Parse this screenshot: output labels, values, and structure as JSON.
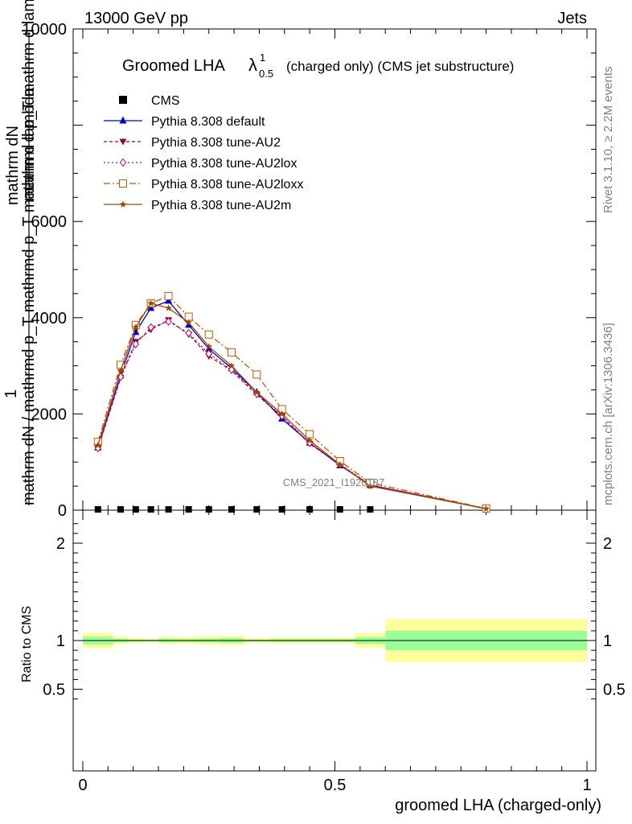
{
  "header": {
    "left": "13000 GeV pp",
    "right": "Jets"
  },
  "title": {
    "main": "Groomed LHA",
    "lambda_symbol": "λ",
    "lambda_sup": "1",
    "lambda_sub": "0.5",
    "rest": "(charged only) (CMS jet substructure)"
  },
  "side_labels": {
    "rivet": "Rivet 3.1.10, ≥ 2.2M events",
    "mcplots": "mcplots.cern.ch [arXiv:1306.3436]"
  },
  "watermark": "CMS_2021_I1920187",
  "ylabel_main": {
    "line1_num": "mathrm dN",
    "line1_den": "mathrm d p_T mathrm d lambda",
    "frac_one": "1",
    "line2": "mathrm dN / mathrmd p_T mathrmd p_T mathrm d lambda",
    "full_text": "1 over mathrm dN / mathrmd p_T mathrmd p_T  times  mathrm dN over mathrm d p_T mathrm d lambda"
  },
  "ylabel_ratio": "Ratio to CMS",
  "xlabel": "groomed LHA (charged-only)",
  "legend": [
    {
      "label": "CMS",
      "color": "#000000",
      "marker": "square-filled",
      "dash": ""
    },
    {
      "label": "Pythia 8.308 default",
      "color": "#0000cc",
      "marker": "triangle-up",
      "dash": ""
    },
    {
      "label": "Pythia 8.308 tune-AU2",
      "color": "#990033",
      "marker": "triangle-down",
      "dash": "4,3"
    },
    {
      "label": "Pythia 8.308 tune-AU2lox",
      "color": "#cc0066",
      "marker": "diamond-open",
      "dash": "2,3"
    },
    {
      "label": "Pythia 8.308 tune-AU2loxx",
      "color": "#cc5500",
      "marker": "square-open",
      "dash": "8,3,2,3"
    },
    {
      "label": "Pythia 8.308 tune-AU2m",
      "color": "#994c00",
      "marker": "star",
      "dash": ""
    }
  ],
  "chart_data": {
    "type": "line",
    "xlabel": "groomed LHA (charged-only)",
    "xlim": [
      0,
      1
    ],
    "ylim_main": [
      0,
      10000
    ],
    "ylim_ratio": [
      0.3,
      2.3
    ],
    "x_ticks": [
      "0",
      "0.5",
      "1"
    ],
    "y_ticks_main": [
      "0",
      "2000",
      "4000",
      "6000",
      "10000"
    ],
    "y_ticks_ratio": [
      "0.5",
      "1",
      "2"
    ],
    "x": [
      0.03,
      0.075,
      0.105,
      0.135,
      0.17,
      0.21,
      0.25,
      0.295,
      0.345,
      0.395,
      0.45,
      0.51,
      0.57,
      0.8
    ],
    "series": [
      {
        "name": "CMS",
        "values": [
          0,
          0,
          0,
          0,
          0,
          0,
          0,
          0,
          0,
          0,
          0,
          0,
          0,
          null
        ]
      },
      {
        "name": "Pythia 8.308 default",
        "values": [
          1300,
          2800,
          3700,
          4200,
          4350,
          3850,
          3350,
          2950,
          2450,
          1900,
          1400,
          930,
          520,
          30
        ]
      },
      {
        "name": "Pythia 8.308 tune-AU2",
        "values": [
          1280,
          2750,
          3500,
          3750,
          3950,
          3650,
          3200,
          2900,
          2400,
          1950,
          1380,
          950,
          520,
          30
        ]
      },
      {
        "name": "Pythia 8.308 tune-AU2lox",
        "values": [
          1290,
          2770,
          3450,
          3800,
          3920,
          3680,
          3250,
          2920,
          2420,
          1960,
          1400,
          960,
          530,
          30
        ]
      },
      {
        "name": "Pythia 8.308 tune-AU2loxx",
        "values": [
          1420,
          3020,
          3850,
          4300,
          4450,
          4020,
          3650,
          3280,
          2820,
          2100,
          1580,
          1020,
          570,
          35
        ]
      },
      {
        "name": "Pythia 8.308 tune-AU2m",
        "values": [
          1350,
          2900,
          3800,
          4300,
          4200,
          3900,
          3400,
          3000,
          2450,
          2000,
          1450,
          950,
          500,
          30
        ]
      }
    ],
    "ratio_bands": [
      {
        "x0": 0.0,
        "x1": 0.06,
        "yellow": [
          0.92,
          1.08
        ],
        "green": [
          0.96,
          1.04
        ]
      },
      {
        "x0": 0.06,
        "x1": 0.09,
        "yellow": [
          0.96,
          1.04
        ],
        "green": [
          0.98,
          1.02
        ]
      },
      {
        "x0": 0.09,
        "x1": 0.12,
        "yellow": [
          0.975,
          1.025
        ],
        "green": [
          0.99,
          1.01
        ]
      },
      {
        "x0": 0.12,
        "x1": 0.15,
        "yellow": [
          0.98,
          1.02
        ],
        "green": [
          0.99,
          1.01
        ]
      },
      {
        "x0": 0.15,
        "x1": 0.19,
        "yellow": [
          0.96,
          1.04
        ],
        "green": [
          0.98,
          1.02
        ]
      },
      {
        "x0": 0.19,
        "x1": 0.23,
        "yellow": [
          0.965,
          1.035
        ],
        "green": [
          0.985,
          1.015
        ]
      },
      {
        "x0": 0.23,
        "x1": 0.27,
        "yellow": [
          0.955,
          1.045
        ],
        "green": [
          0.98,
          1.02
        ]
      },
      {
        "x0": 0.27,
        "x1": 0.32,
        "yellow": [
          0.95,
          1.05
        ],
        "green": [
          0.975,
          1.025
        ]
      },
      {
        "x0": 0.32,
        "x1": 0.37,
        "yellow": [
          0.975,
          1.025
        ],
        "green": [
          0.99,
          1.01
        ]
      },
      {
        "x0": 0.37,
        "x1": 0.42,
        "yellow": [
          0.97,
          1.03
        ],
        "green": [
          0.985,
          1.015
        ]
      },
      {
        "x0": 0.42,
        "x1": 0.48,
        "yellow": [
          0.97,
          1.03
        ],
        "green": [
          0.985,
          1.015
        ]
      },
      {
        "x0": 0.48,
        "x1": 0.54,
        "yellow": [
          0.97,
          1.03
        ],
        "green": [
          0.985,
          1.015
        ]
      },
      {
        "x0": 0.54,
        "x1": 0.6,
        "yellow": [
          0.925,
          1.075
        ],
        "green": [
          0.965,
          1.035
        ]
      },
      {
        "x0": 0.6,
        "x1": 1.0,
        "yellow": [
          0.78,
          1.22
        ],
        "green": [
          0.9,
          1.1
        ]
      }
    ],
    "band_colors": {
      "yellow": "#ffff99",
      "green": "#99ff99"
    }
  }
}
